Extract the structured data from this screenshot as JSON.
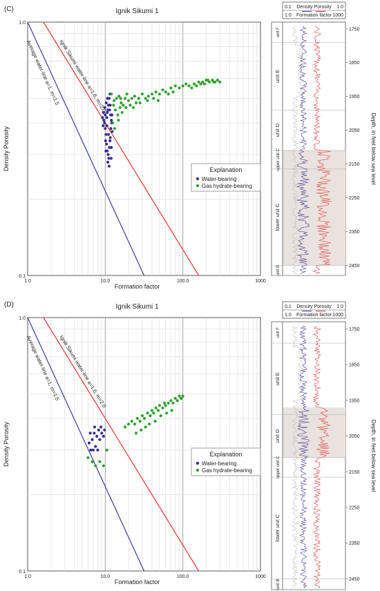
{
  "chart_data": [
    {
      "type": "scatter",
      "panel_label": "(C)",
      "title": "Ignik Sikumi 1",
      "xlabel": "Formation factor",
      "ylabel": "Density Porosity",
      "xscale": "log",
      "yscale": "log",
      "xlim": [
        1,
        1000
      ],
      "ylim": [
        0.1,
        1.0
      ],
      "x_tick_labels": [
        "1.0",
        "10.0",
        "100.0",
        "1000"
      ],
      "y_tick_labels": [
        "1.0",
        "0.1"
      ],
      "grid": true,
      "lines": [
        {
          "name": "Average water-line a=1, m=1.5",
          "a": 1,
          "m": 1.5,
          "color": "#3a3aa0"
        },
        {
          "name": "Ignik Sikumi water-line a=1.6, m=2.0",
          "a": 1.6,
          "m": 2.0,
          "color": "#e8322e"
        }
      ],
      "legend": {
        "title": "Explanation",
        "position": "right",
        "entries": [
          "Water-bearing",
          "Gas hydrate-bearing"
        ]
      },
      "series": [
        {
          "name": "Water-bearing",
          "color": "#3b2e8f",
          "points": [
            [
              9.2,
              0.42
            ],
            [
              9.5,
              0.44
            ],
            [
              9.8,
              0.4
            ],
            [
              10,
              0.38
            ],
            [
              10.2,
              0.36
            ],
            [
              10.5,
              0.42
            ],
            [
              10.8,
              0.45
            ],
            [
              11,
              0.47
            ],
            [
              11.2,
              0.5
            ],
            [
              11.5,
              0.52
            ],
            [
              10.1,
              0.34
            ],
            [
              10.4,
              0.33
            ],
            [
              10.6,
              0.31
            ],
            [
              10.9,
              0.3
            ],
            [
              11.1,
              0.29
            ],
            [
              11.3,
              0.32
            ],
            [
              11.6,
              0.35
            ],
            [
              11.8,
              0.38
            ],
            [
              12,
              0.41
            ],
            [
              12.2,
              0.43
            ],
            [
              9.9,
              0.46
            ],
            [
              10.3,
              0.48
            ],
            [
              10.7,
              0.5
            ],
            [
              11.4,
              0.45
            ],
            [
              11.7,
              0.43
            ],
            [
              12.1,
              0.4
            ],
            [
              9.6,
              0.41
            ],
            [
              10,
              0.43
            ],
            [
              10.5,
              0.39
            ],
            [
              11,
              0.36
            ],
            [
              11.5,
              0.34
            ],
            [
              12,
              0.32
            ],
            [
              10.2,
              0.31
            ],
            [
              10.8,
              0.28
            ],
            [
              11.2,
              0.27
            ],
            [
              11.9,
              0.29
            ],
            [
              12.3,
              0.37
            ],
            [
              9.4,
              0.39
            ],
            [
              10.6,
              0.44
            ],
            [
              11.6,
              0.47
            ]
          ]
        },
        {
          "name": "Gas hydrate-bearing",
          "color": "#2fa02f",
          "points": [
            [
              12,
              0.52
            ],
            [
              13,
              0.49
            ],
            [
              14,
              0.5
            ],
            [
              15,
              0.51
            ],
            [
              16,
              0.48
            ],
            [
              17,
              0.47
            ],
            [
              18,
              0.5
            ],
            [
              19,
              0.52
            ],
            [
              20,
              0.49
            ],
            [
              22,
              0.5
            ],
            [
              24,
              0.51
            ],
            [
              25,
              0.48
            ],
            [
              27,
              0.5
            ],
            [
              30,
              0.52
            ],
            [
              33,
              0.5
            ],
            [
              36,
              0.51
            ],
            [
              40,
              0.52
            ],
            [
              45,
              0.53
            ],
            [
              50,
              0.52
            ],
            [
              55,
              0.54
            ],
            [
              60,
              0.53
            ],
            [
              70,
              0.55
            ],
            [
              80,
              0.56
            ],
            [
              90,
              0.55
            ],
            [
              100,
              0.56
            ],
            [
              110,
              0.57
            ],
            [
              120,
              0.56
            ],
            [
              140,
              0.57
            ],
            [
              160,
              0.58
            ],
            [
              180,
              0.58
            ],
            [
              200,
              0.59
            ],
            [
              220,
              0.58
            ],
            [
              240,
              0.59
            ],
            [
              260,
              0.58
            ],
            [
              280,
              0.59
            ],
            [
              300,
              0.58
            ],
            [
              13.5,
              0.45
            ],
            [
              14.5,
              0.43
            ],
            [
              15.5,
              0.46
            ],
            [
              16.5,
              0.44
            ],
            [
              12.5,
              0.4
            ],
            [
              13.2,
              0.38
            ],
            [
              14.8,
              0.41
            ],
            [
              12.8,
              0.47
            ],
            [
              15.8,
              0.5
            ],
            [
              18.5,
              0.46
            ],
            [
              21,
              0.47
            ],
            [
              23,
              0.46
            ],
            [
              28,
              0.48
            ],
            [
              35,
              0.49
            ],
            [
              42,
              0.5
            ],
            [
              48,
              0.49
            ],
            [
              65,
              0.52
            ],
            [
              75,
              0.53
            ],
            [
              130,
              0.55
            ],
            [
              150,
              0.56
            ],
            [
              170,
              0.57
            ],
            [
              190,
              0.57
            ],
            [
              210,
              0.59
            ],
            [
              250,
              0.58
            ]
          ]
        }
      ],
      "log_panel": {
        "top_axis": [
          {
            "label": "Density Porosity",
            "left": "0.1",
            "right": "1.0"
          },
          {
            "label": "Formation factor",
            "left": "1.0",
            "right": "1000"
          }
        ],
        "depth_label": "Depth, in feet below sea level",
        "depth_ticks": [
          "1750",
          "1850",
          "1950",
          "2050",
          "2150",
          "2250",
          "2350",
          "2450"
        ],
        "depth_range": [
          1730,
          2480
        ],
        "units": [
          {
            "label": "unit F",
            "top": 1730,
            "bottom": 1790
          },
          {
            "label": "unit E",
            "top": 1790,
            "bottom": 1990
          },
          {
            "label": "unit D",
            "top": 1990,
            "bottom": 2110
          },
          {
            "label": "upper unit C",
            "top": 2110,
            "bottom": 2165
          },
          {
            "label": "lower unit C",
            "top": 2165,
            "bottom": 2450
          },
          {
            "label": "unit B",
            "top": 2450,
            "bottom": 2480
          }
        ],
        "highlight": [
          2110,
          2450
        ]
      }
    },
    {
      "type": "scatter",
      "panel_label": "(D)",
      "title": "Ignik Sikumi 1",
      "xlabel": "Formation factor",
      "ylabel": "Density Porosity",
      "xscale": "log",
      "yscale": "log",
      "xlim": [
        1,
        1000
      ],
      "ylim": [
        0.1,
        1.0
      ],
      "x_tick_labels": [
        "1.0",
        "10.0",
        "100.0",
        "1000"
      ],
      "y_tick_labels": [
        "1.0",
        "0.1"
      ],
      "grid": true,
      "lines": [
        {
          "name": "Average water-line a=1, m=1.5",
          "a": 1,
          "m": 1.5,
          "color": "#3a3aa0"
        },
        {
          "name": "Ignik Sikumi water-line a=1.6, m=2.0",
          "a": 1.6,
          "m": 2.0,
          "color": "#e8322e"
        }
      ],
      "legend": {
        "title": "Explanation",
        "position": "right",
        "entries": [
          "Water-bearing",
          "Gas hydrate-bearing"
        ]
      },
      "series": [
        {
          "name": "Water-bearing",
          "color": "#3b2e8f",
          "points": [
            [
              6.2,
              0.32
            ],
            [
              6.5,
              0.3
            ],
            [
              6.8,
              0.33
            ],
            [
              7.2,
              0.35
            ],
            [
              7.5,
              0.31
            ],
            [
              7.8,
              0.34
            ],
            [
              8.2,
              0.36
            ],
            [
              8.5,
              0.33
            ],
            [
              9,
              0.35
            ],
            [
              9.5,
              0.34
            ],
            [
              9.8,
              0.36
            ],
            [
              7,
              0.3
            ],
            [
              8,
              0.3
            ],
            [
              6.4,
              0.35
            ],
            [
              7.3,
              0.37
            ],
            [
              8.8,
              0.37
            ]
          ]
        },
        {
          "name": "Gas hydrate-bearing",
          "color": "#2fa02f",
          "points": [
            [
              6,
              0.28
            ],
            [
              6.8,
              0.27
            ],
            [
              7.5,
              0.26
            ],
            [
              8.5,
              0.27
            ],
            [
              9.5,
              0.26
            ],
            [
              10.5,
              0.3
            ],
            [
              18,
              0.37
            ],
            [
              20,
              0.38
            ],
            [
              22,
              0.39
            ],
            [
              24,
              0.38
            ],
            [
              26,
              0.4
            ],
            [
              28,
              0.39
            ],
            [
              30,
              0.41
            ],
            [
              32,
              0.4
            ],
            [
              35,
              0.42
            ],
            [
              38,
              0.41
            ],
            [
              40,
              0.43
            ],
            [
              42,
              0.42
            ],
            [
              45,
              0.44
            ],
            [
              48,
              0.43
            ],
            [
              50,
              0.45
            ],
            [
              55,
              0.44
            ],
            [
              58,
              0.46
            ],
            [
              60,
              0.45
            ],
            [
              65,
              0.46
            ],
            [
              70,
              0.47
            ],
            [
              75,
              0.46
            ],
            [
              80,
              0.48
            ],
            [
              85,
              0.47
            ],
            [
              90,
              0.49
            ],
            [
              95,
              0.48
            ],
            [
              100,
              0.49
            ],
            [
              33,
              0.37
            ],
            [
              37,
              0.38
            ],
            [
              44,
              0.39
            ],
            [
              52,
              0.41
            ],
            [
              62,
              0.42
            ],
            [
              72,
              0.43
            ],
            [
              25,
              0.35
            ],
            [
              29,
              0.36
            ]
          ]
        }
      ],
      "log_panel": {
        "top_axis": [
          {
            "label": "Density Porosity",
            "left": "0.1",
            "right": "1.0"
          },
          {
            "label": "Formation factor",
            "left": "1.0",
            "right": "1000"
          }
        ],
        "depth_label": "Depth, in feet below sea level",
        "depth_ticks": [
          "1750",
          "1850",
          "1950",
          "2050",
          "2150",
          "2250",
          "2350",
          "2450"
        ],
        "depth_range": [
          1730,
          2480
        ],
        "units": [
          {
            "label": "unit F",
            "top": 1730,
            "bottom": 1790
          },
          {
            "label": "unit E",
            "top": 1790,
            "bottom": 1990
          },
          {
            "label": "unit D",
            "top": 1990,
            "bottom": 2110
          },
          {
            "label": "upper unit C",
            "top": 2110,
            "bottom": 2165
          },
          {
            "label": "lower unit C",
            "top": 2165,
            "bottom": 2450
          },
          {
            "label": "unit B",
            "top": 2450,
            "bottom": 2480
          }
        ],
        "highlight": [
          1970,
          2110
        ]
      }
    }
  ]
}
